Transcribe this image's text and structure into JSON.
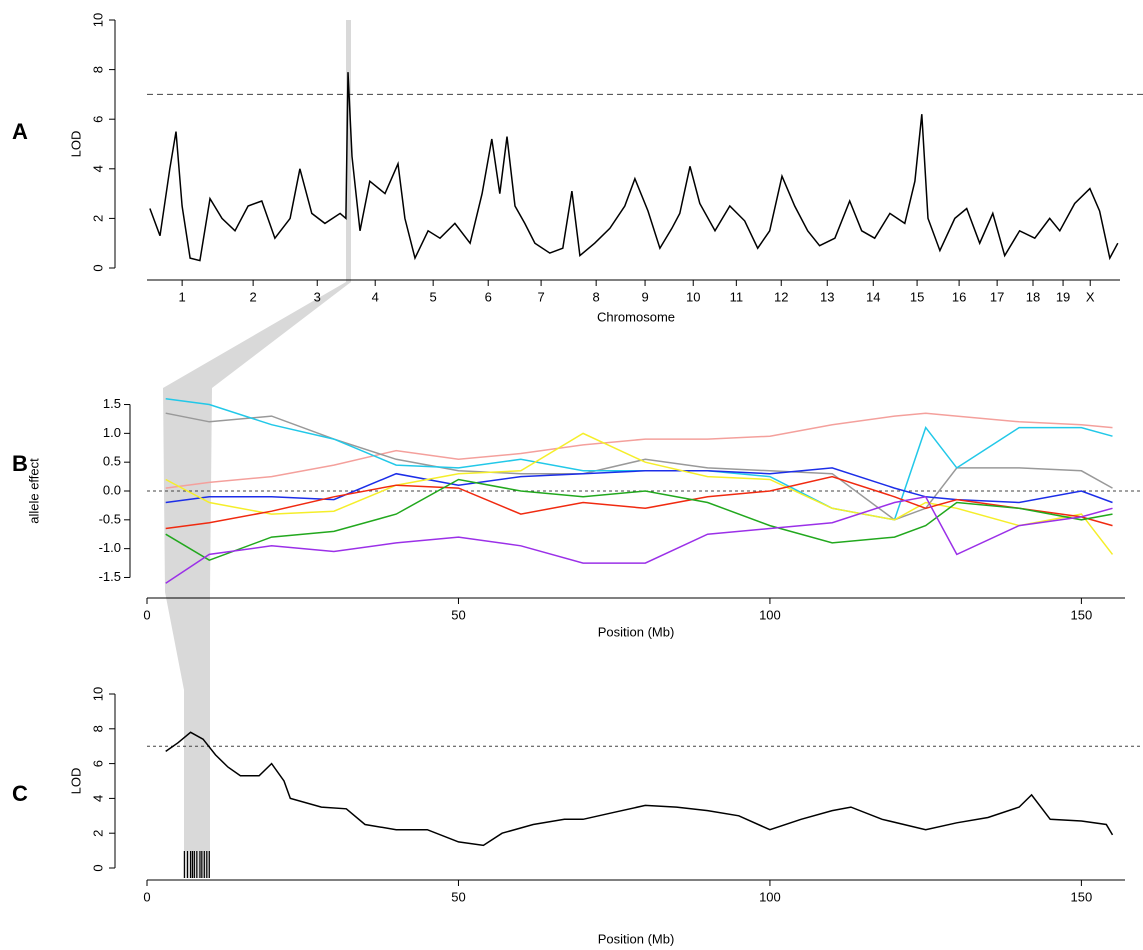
{
  "chart_data": [
    {
      "type": "line",
      "panel_label": "A",
      "ylabel": "LOD",
      "xlabel": "Chromosome",
      "color": "#000000",
      "x": [
        8,
        36,
        63,
        80,
        97,
        119,
        146,
        174,
        207,
        243,
        279,
        317,
        353,
        395,
        422,
        455,
        491,
        533,
        549,
        555,
        566,
        588,
        615,
        657,
        693,
        712,
        740,
        776,
        809,
        850,
        892,
        925,
        952,
        974,
        994,
        1016,
        1043,
        1071,
        1112,
        1148,
        1173,
        1195,
        1236,
        1278,
        1319,
        1347,
        1383,
        1416,
        1449,
        1471,
        1499,
        1526,
        1568,
        1609,
        1650,
        1686,
        1719,
        1753,
        1788,
        1824,
        1857,
        1899,
        1940,
        1973,
        2009,
        2051,
        2092,
        2120,
        2139,
        2156,
        2189,
        2230,
        2263,
        2299,
        2335,
        2368,
        2409,
        2451,
        2492,
        2520,
        2561,
        2603,
        2630,
        2658,
        2680
      ],
      "values": [
        2.4,
        1.3,
        4.0,
        5.5,
        2.5,
        0.4,
        0.3,
        2.8,
        2.0,
        1.5,
        2.5,
        2.7,
        1.2,
        2.0,
        4.0,
        2.2,
        1.8,
        2.2,
        2.0,
        7.9,
        4.5,
        1.5,
        3.5,
        3.0,
        4.2,
        2.0,
        0.4,
        1.5,
        1.2,
        1.8,
        1.0,
        3.0,
        5.2,
        3.0,
        5.3,
        2.5,
        1.8,
        1.0,
        0.6,
        0.8,
        3.1,
        0.5,
        1.0,
        1.6,
        2.5,
        3.6,
        2.3,
        0.8,
        1.6,
        2.2,
        4.1,
        2.6,
        1.5,
        2.5,
        1.9,
        0.8,
        1.5,
        3.7,
        2.5,
        1.5,
        0.9,
        1.2,
        2.7,
        1.5,
        1.2,
        2.2,
        1.8,
        3.5,
        6.2,
        2.0,
        0.7,
        2.0,
        2.4,
        1.0,
        2.2,
        0.5,
        1.5,
        1.2,
        2.0,
        1.5,
        2.6,
        3.2,
        2.3,
        0.4,
        1.0
      ],
      "xlim": [
        0,
        2700
      ],
      "ylim": [
        0,
        10
      ],
      "yticks": [
        0,
        2,
        4,
        6,
        8,
        10
      ],
      "hline": 7,
      "xticks": [
        {
          "value": 97,
          "label": "1"
        },
        {
          "value": 293,
          "label": "2"
        },
        {
          "value": 470,
          "label": "3"
        },
        {
          "value": 630,
          "label": "4"
        },
        {
          "value": 790,
          "label": "5"
        },
        {
          "value": 942,
          "label": "6"
        },
        {
          "value": 1088,
          "label": "7"
        },
        {
          "value": 1240,
          "label": "8"
        },
        {
          "value": 1375,
          "label": "9"
        },
        {
          "value": 1508,
          "label": "10"
        },
        {
          "value": 1627,
          "label": "11"
        },
        {
          "value": 1751,
          "label": "12"
        },
        {
          "value": 1878,
          "label": "13"
        },
        {
          "value": 2005,
          "label": "14"
        },
        {
          "value": 2126,
          "label": "15"
        },
        {
          "value": 2242,
          "label": "16"
        },
        {
          "value": 2347,
          "label": "17"
        },
        {
          "value": 2446,
          "label": "18"
        },
        {
          "value": 2529,
          "label": "19"
        },
        {
          "value": 2604,
          "label": "X"
        }
      ]
    },
    {
      "type": "multiline",
      "panel_label": "B",
      "ylabel": "allele effect",
      "xlabel": "Position (Mb)",
      "x": [
        3,
        10,
        20,
        30,
        40,
        50,
        60,
        70,
        80,
        90,
        100,
        110,
        120,
        125,
        130,
        140,
        150,
        155
      ],
      "series": [
        {
          "color": "#f4a09c",
          "values": [
            0.05,
            0.15,
            0.25,
            0.45,
            0.7,
            0.55,
            0.65,
            0.8,
            0.9,
            0.9,
            0.95,
            1.15,
            1.3,
            1.35,
            1.3,
            1.2,
            1.15,
            1.1
          ]
        },
        {
          "color": "#999999",
          "values": [
            1.35,
            1.2,
            1.3,
            0.9,
            0.55,
            0.35,
            0.3,
            0.3,
            0.55,
            0.4,
            0.35,
            0.3,
            -0.5,
            -0.3,
            0.4,
            0.4,
            0.35,
            0.05
          ]
        },
        {
          "color": "#22c8e8",
          "values": [
            1.6,
            1.5,
            1.15,
            0.9,
            0.45,
            0.4,
            0.55,
            0.35,
            0.35,
            0.35,
            0.25,
            -0.3,
            -0.5,
            1.1,
            0.4,
            1.1,
            1.1,
            0.95
          ]
        },
        {
          "color": "#1c2ee8",
          "values": [
            -0.2,
            -0.1,
            -0.1,
            -0.15,
            0.3,
            0.1,
            0.25,
            0.3,
            0.35,
            0.35,
            0.3,
            0.4,
            0.05,
            -0.1,
            -0.15,
            -0.2,
            0.0,
            -0.2
          ]
        },
        {
          "color": "#f5ee2a",
          "values": [
            0.2,
            -0.2,
            -0.4,
            -0.35,
            0.1,
            0.3,
            0.35,
            1.0,
            0.5,
            0.25,
            0.2,
            -0.3,
            -0.5,
            -0.2,
            -0.3,
            -0.6,
            -0.4,
            -1.1
          ]
        },
        {
          "color": "#f02a10",
          "values": [
            -0.65,
            -0.55,
            -0.35,
            -0.1,
            0.1,
            0.05,
            -0.4,
            -0.2,
            -0.3,
            -0.1,
            0.0,
            0.25,
            -0.1,
            -0.3,
            -0.15,
            -0.3,
            -0.45,
            -0.6
          ]
        },
        {
          "color": "#22a81e",
          "values": [
            -0.75,
            -1.2,
            -0.8,
            -0.7,
            -0.4,
            0.2,
            0.0,
            -0.1,
            0.0,
            -0.2,
            -0.6,
            -0.9,
            -0.8,
            -0.6,
            -0.2,
            -0.3,
            -0.5,
            -0.4
          ]
        },
        {
          "color": "#9b30e8",
          "values": [
            -1.6,
            -1.1,
            -0.95,
            -1.05,
            -0.9,
            -0.8,
            -0.95,
            -1.25,
            -1.25,
            -0.75,
            -0.65,
            -0.55,
            -0.2,
            -0.1,
            -1.1,
            -0.6,
            -0.45,
            -0.3
          ]
        }
      ],
      "xlim": [
        0,
        157
      ],
      "ylim": [
        -1.7,
        1.7
      ],
      "xticks": [
        0,
        50,
        100,
        150
      ],
      "hline": 0,
      "yticks": [
        1.5,
        {
          "value": 1,
          "label": "1.0"
        },
        0.5,
        {
          "value": 0,
          "label": "0.0"
        },
        -0.5,
        {
          "value": -1,
          "label": "-1.0"
        },
        -1.5
      ]
    },
    {
      "type": "line",
      "panel_label": "C",
      "ylabel": "LOD",
      "xlabel": "Position (Mb)",
      "color": "#000000",
      "x": [
        3,
        5,
        7,
        9,
        11,
        13,
        15,
        18,
        20,
        22,
        23,
        28,
        32,
        35,
        40,
        45,
        50,
        54,
        57,
        62,
        67,
        70,
        75,
        80,
        85,
        90,
        95,
        100,
        105,
        110,
        113,
        118,
        125,
        130,
        135,
        140,
        142,
        145,
        150,
        154,
        155
      ],
      "values": [
        6.7,
        7.2,
        7.8,
        7.4,
        6.5,
        5.8,
        5.3,
        5.3,
        6.0,
        5.0,
        4.0,
        3.5,
        3.4,
        2.5,
        2.2,
        2.2,
        1.5,
        1.3,
        2.0,
        2.5,
        2.8,
        2.8,
        3.2,
        3.6,
        3.5,
        3.3,
        3.0,
        2.2,
        2.8,
        3.3,
        3.5,
        2.8,
        2.2,
        2.6,
        2.9,
        3.5,
        4.2,
        2.8,
        2.7,
        2.5,
        1.9
      ],
      "markers": [
        6.0,
        6.5,
        7.0,
        7.3,
        7.6,
        8.0,
        8.5,
        8.8,
        9.2,
        9.6,
        10.0
      ],
      "xlim": [
        0,
        157
      ],
      "ylim": [
        0,
        10
      ],
      "yticks": [
        0,
        2,
        4,
        6,
        8,
        10
      ],
      "xticks": [
        0,
        50,
        100,
        150
      ],
      "hline": 7
    }
  ]
}
